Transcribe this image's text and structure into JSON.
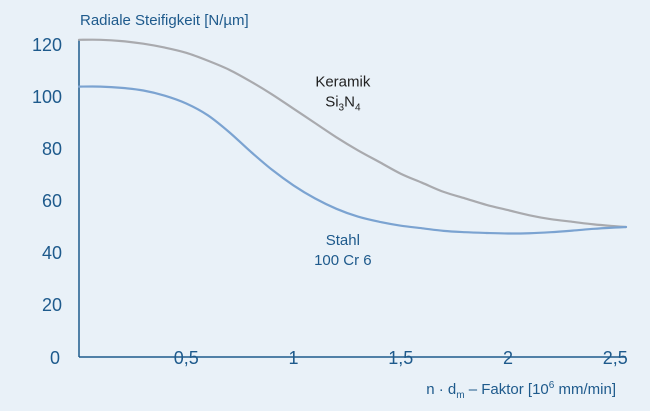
{
  "chart_data": {
    "type": "line",
    "title": "",
    "ylabel": "Radiale Steifigkeit [N/µm]",
    "xlabel_prefix": "n · d",
    "xlabel_sub": "m",
    "xlabel_mid": " – Faktor [10",
    "xlabel_sup": "6",
    "xlabel_suffix": " mm/min]",
    "xlim": [
      0,
      2.55
    ],
    "ylim": [
      0,
      120
    ],
    "x_ticks": [
      {
        "value": 0,
        "label": "0"
      },
      {
        "value": 0.5,
        "label": "0,5"
      },
      {
        "value": 1,
        "label": "1"
      },
      {
        "value": 1.5,
        "label": "1,5"
      },
      {
        "value": 2,
        "label": "2"
      },
      {
        "value": 2.5,
        "label": "2,5"
      }
    ],
    "y_ticks": [
      {
        "value": 20,
        "label": "20"
      },
      {
        "value": 40,
        "label": "40"
      },
      {
        "value": 60,
        "label": "60"
      },
      {
        "value": 80,
        "label": "80"
      },
      {
        "value": 100,
        "label": "100"
      },
      {
        "value": 120,
        "label": "120"
      }
    ],
    "series": [
      {
        "name": "Keramik Si3N4",
        "label_line1": "Keramik",
        "label_line2_main1": "Si",
        "label_line2_sub1": "3",
        "label_line2_main2": "N",
        "label_line2_sub2": "4",
        "color": "#a9aaae",
        "label_at": {
          "x": 1.23,
          "y": 104
        },
        "x": [
          0,
          0.1,
          0.2,
          0.3,
          0.4,
          0.5,
          0.6,
          0.7,
          0.8,
          0.9,
          1.0,
          1.1,
          1.2,
          1.3,
          1.4,
          1.5,
          1.6,
          1.7,
          1.8,
          1.9,
          2.0,
          2.1,
          2.2,
          2.3,
          2.4,
          2.5,
          2.55
        ],
        "y": [
          122,
          122,
          121.5,
          120.5,
          119,
          117,
          114,
          110.5,
          106,
          101,
          95.5,
          90,
          84.5,
          79.5,
          75,
          70.5,
          67,
          63.5,
          61,
          58.5,
          56.5,
          54.5,
          53,
          52,
          51,
          50.3,
          50
        ]
      },
      {
        "name": "Stahl 100 Cr 6",
        "label_line1": "Stahl",
        "label_line2": "100 Cr 6",
        "color": "#7ba3d1",
        "label_at": {
          "x": 1.23,
          "y": 43
        },
        "x": [
          0,
          0.1,
          0.2,
          0.3,
          0.4,
          0.5,
          0.6,
          0.7,
          0.8,
          0.9,
          1.0,
          1.1,
          1.2,
          1.3,
          1.4,
          1.5,
          1.6,
          1.7,
          1.8,
          1.9,
          2.0,
          2.1,
          2.2,
          2.3,
          2.4,
          2.5,
          2.55
        ],
        "y": [
          104,
          104,
          103.5,
          102.5,
          100.5,
          97.5,
          93,
          86.5,
          79,
          72,
          66,
          61,
          57,
          54,
          52,
          50.5,
          49.5,
          48.5,
          48,
          47.7,
          47.5,
          47.6,
          48,
          48.6,
          49.3,
          49.8,
          50
        ]
      }
    ]
  }
}
